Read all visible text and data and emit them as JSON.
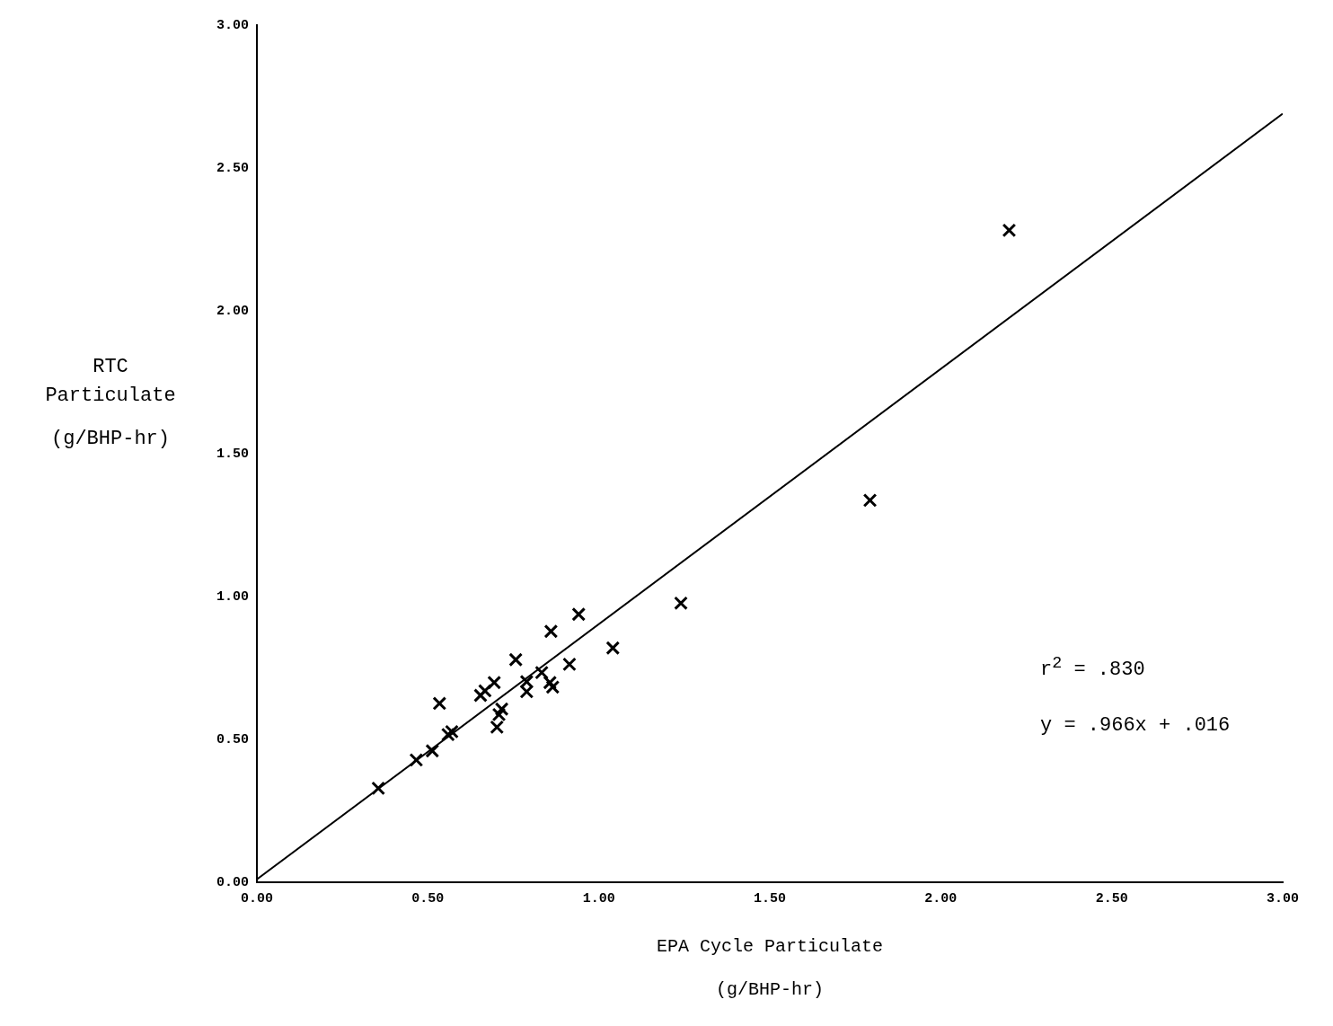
{
  "chart_data": {
    "type": "scatter",
    "xlabel": "EPA Cycle Particulate\n\n(g/BHP-hr)",
    "ylabel": "RTC\nParticulate\n\n(g/BHP-hr)",
    "xlim": [
      0,
      3
    ],
    "ylim": [
      0,
      3
    ],
    "xticks": [
      {
        "value": 0,
        "label": "0.00"
      },
      {
        "value": 0.5,
        "label": "0.50"
      },
      {
        "value": 1,
        "label": "1.00"
      },
      {
        "value": 1.5,
        "label": "1.50"
      },
      {
        "value": 2,
        "label": "2.00"
      },
      {
        "value": 2.5,
        "label": "2.50"
      },
      {
        "value": 3,
        "label": "3.00"
      }
    ],
    "yticks": [
      {
        "value": 0,
        "label": "0.00"
      },
      {
        "value": 0.5,
        "label": "0.50"
      },
      {
        "value": 1,
        "label": "1.00"
      },
      {
        "value": 1.5,
        "label": "1.50"
      },
      {
        "value": 2,
        "label": "2.00"
      },
      {
        "value": 2.5,
        "label": "2.50"
      },
      {
        "value": 3,
        "label": "3.00"
      }
    ],
    "grid": false,
    "legend": false,
    "marker": "cross",
    "annotations": [
      "r$^{2}$ = .830",
      "y = .966x + .016"
    ],
    "series": [
      {
        "color": "#000000",
        "x": [
          0.355,
          0.466,
          0.513,
          0.559,
          0.57,
          0.534,
          0.654,
          0.694,
          0.757,
          0.86,
          0.941,
          1.041,
          0.914,
          0.708,
          0.702,
          0.716,
          0.789,
          0.833,
          0.857,
          0.865,
          0.789,
          0.681,
          0.667,
          1.24,
          1.793,
          2.2
        ],
        "values": [
          0.329,
          0.428,
          0.46,
          0.517,
          0.527,
          0.626,
          0.654,
          0.699,
          0.779,
          0.878,
          0.938,
          0.82,
          0.763,
          0.587,
          0.543,
          0.606,
          0.667,
          0.734,
          0.699,
          0.683,
          0.702,
          null,
          0.67,
          0.977,
          1.337,
          2.282
        ]
      },
      {
        "type": "line",
        "color": "#000000",
        "marker": "none",
        "x": [
          0,
          3
        ],
        "values": [
          0.01,
          2.69
        ]
      }
    ]
  }
}
